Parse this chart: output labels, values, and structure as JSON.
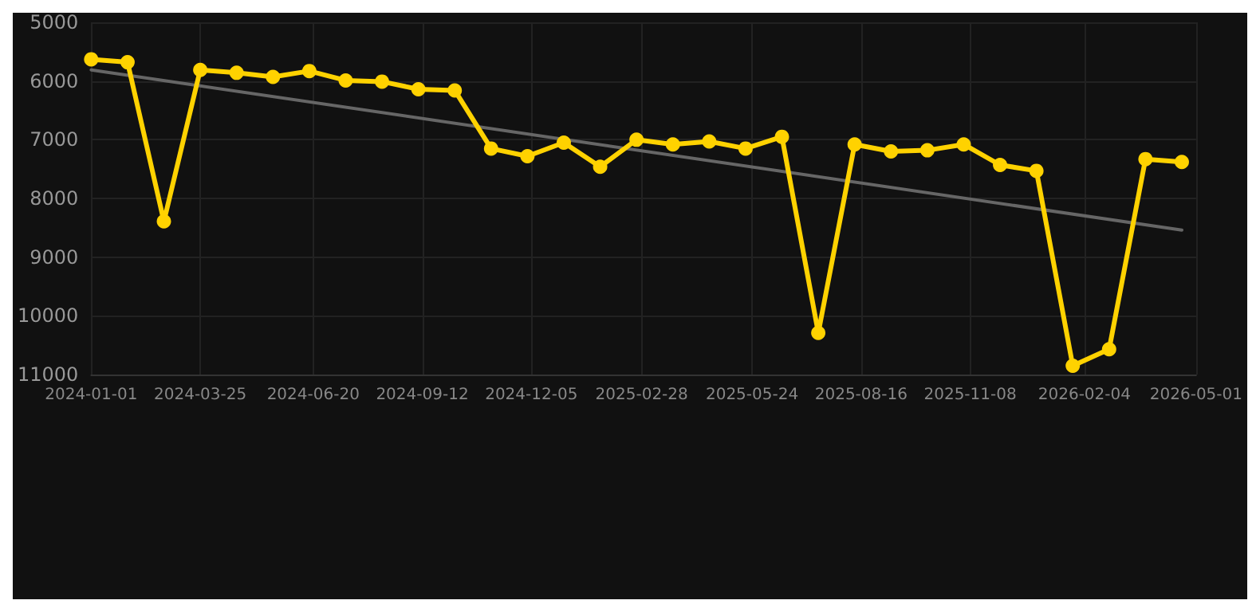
{
  "chart_data": {
    "type": "line",
    "x": [
      "2024-01-01",
      "2024-01-29",
      "2024-02-26",
      "2024-03-25",
      "2024-04-22",
      "2024-05-20",
      "2024-06-17",
      "2024-07-15",
      "2024-08-12",
      "2024-09-09",
      "2024-10-07",
      "2024-11-04",
      "2024-12-02",
      "2024-12-30",
      "2025-01-27",
      "2025-02-24",
      "2025-03-24",
      "2025-04-21",
      "2025-05-19",
      "2025-06-16",
      "2025-07-14",
      "2025-08-11",
      "2025-09-08",
      "2025-10-06",
      "2025-11-03",
      "2025-12-01",
      "2025-12-29",
      "2026-01-26",
      "2026-02-23",
      "2026-03-23",
      "2026-04-20"
    ],
    "series": [
      {
        "color": "#ffd200",
        "values": [
          5630,
          5680,
          8390,
          5810,
          5860,
          5930,
          5830,
          5990,
          6010,
          6140,
          6160,
          7150,
          7280,
          7050,
          7460,
          7000,
          7080,
          7030,
          7150,
          6950,
          10290,
          7080,
          7200,
          7180,
          7080,
          7430,
          7530,
          10850,
          10570,
          7330,
          7380
        ]
      },
      {
        "type": "line",
        "color": "#666666",
        "marker": "none",
        "x": [
          "2024-01-01",
          "2026-04-20"
        ],
        "values": [
          5810,
          8540
        ]
      }
    ],
    "ylim": [
      11000,
      5000
    ],
    "yticks": [
      5000,
      6000,
      7000,
      8000,
      9000,
      10000,
      11000
    ],
    "xlim": [
      "2024-01-01",
      "2026-05-01"
    ],
    "xticks": [
      "2024-01-01",
      "2024-03-25",
      "2024-06-20",
      "2024-09-12",
      "2024-12-05",
      "2025-02-28",
      "2025-05-24",
      "2025-08-16",
      "2025-11-08",
      "2026-02-04",
      "2026-05-01"
    ],
    "grid": true,
    "marker": "circle",
    "line_style": "solid"
  }
}
